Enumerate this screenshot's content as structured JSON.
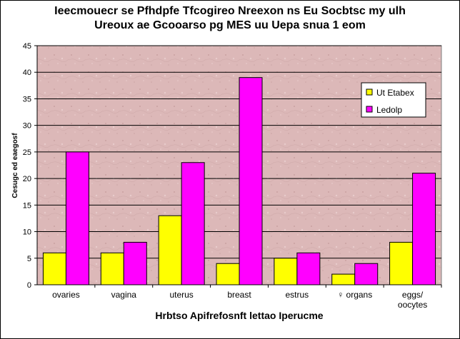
{
  "chart_data": {
    "type": "bar",
    "title_lines": [
      "Ieecmouecr se Pfhdpfe Tfcogireo Nreexon ns Eu Socbtsc my ulh",
      "Ureoux ae  Gcooarso pg MES uu Uepa snua 1 eom"
    ],
    "xlabel": "Hrbtso Apifrefosnft lettao Iperucme",
    "ylabel": "Cesugc ed eaegosf",
    "categories": [
      "ovaries",
      "vagina",
      "uterus",
      "breast",
      "estrus",
      "♀ organs",
      "eggs/\noocytes"
    ],
    "series": [
      {
        "name": "Ut Etabex",
        "color": "#ffff00",
        "values": [
          6,
          6,
          13,
          4,
          5,
          2,
          8
        ]
      },
      {
        "name": "Ledolp",
        "color": "#ff00ff",
        "values": [
          25,
          8,
          23,
          39,
          6,
          4,
          21
        ]
      }
    ],
    "ylim": [
      0,
      45
    ],
    "yticks": [
      0,
      5,
      10,
      15,
      20,
      25,
      30,
      35,
      40,
      45
    ],
    "grid": true,
    "legend_position": "top-right",
    "plot_background": "#dcb8b8"
  }
}
